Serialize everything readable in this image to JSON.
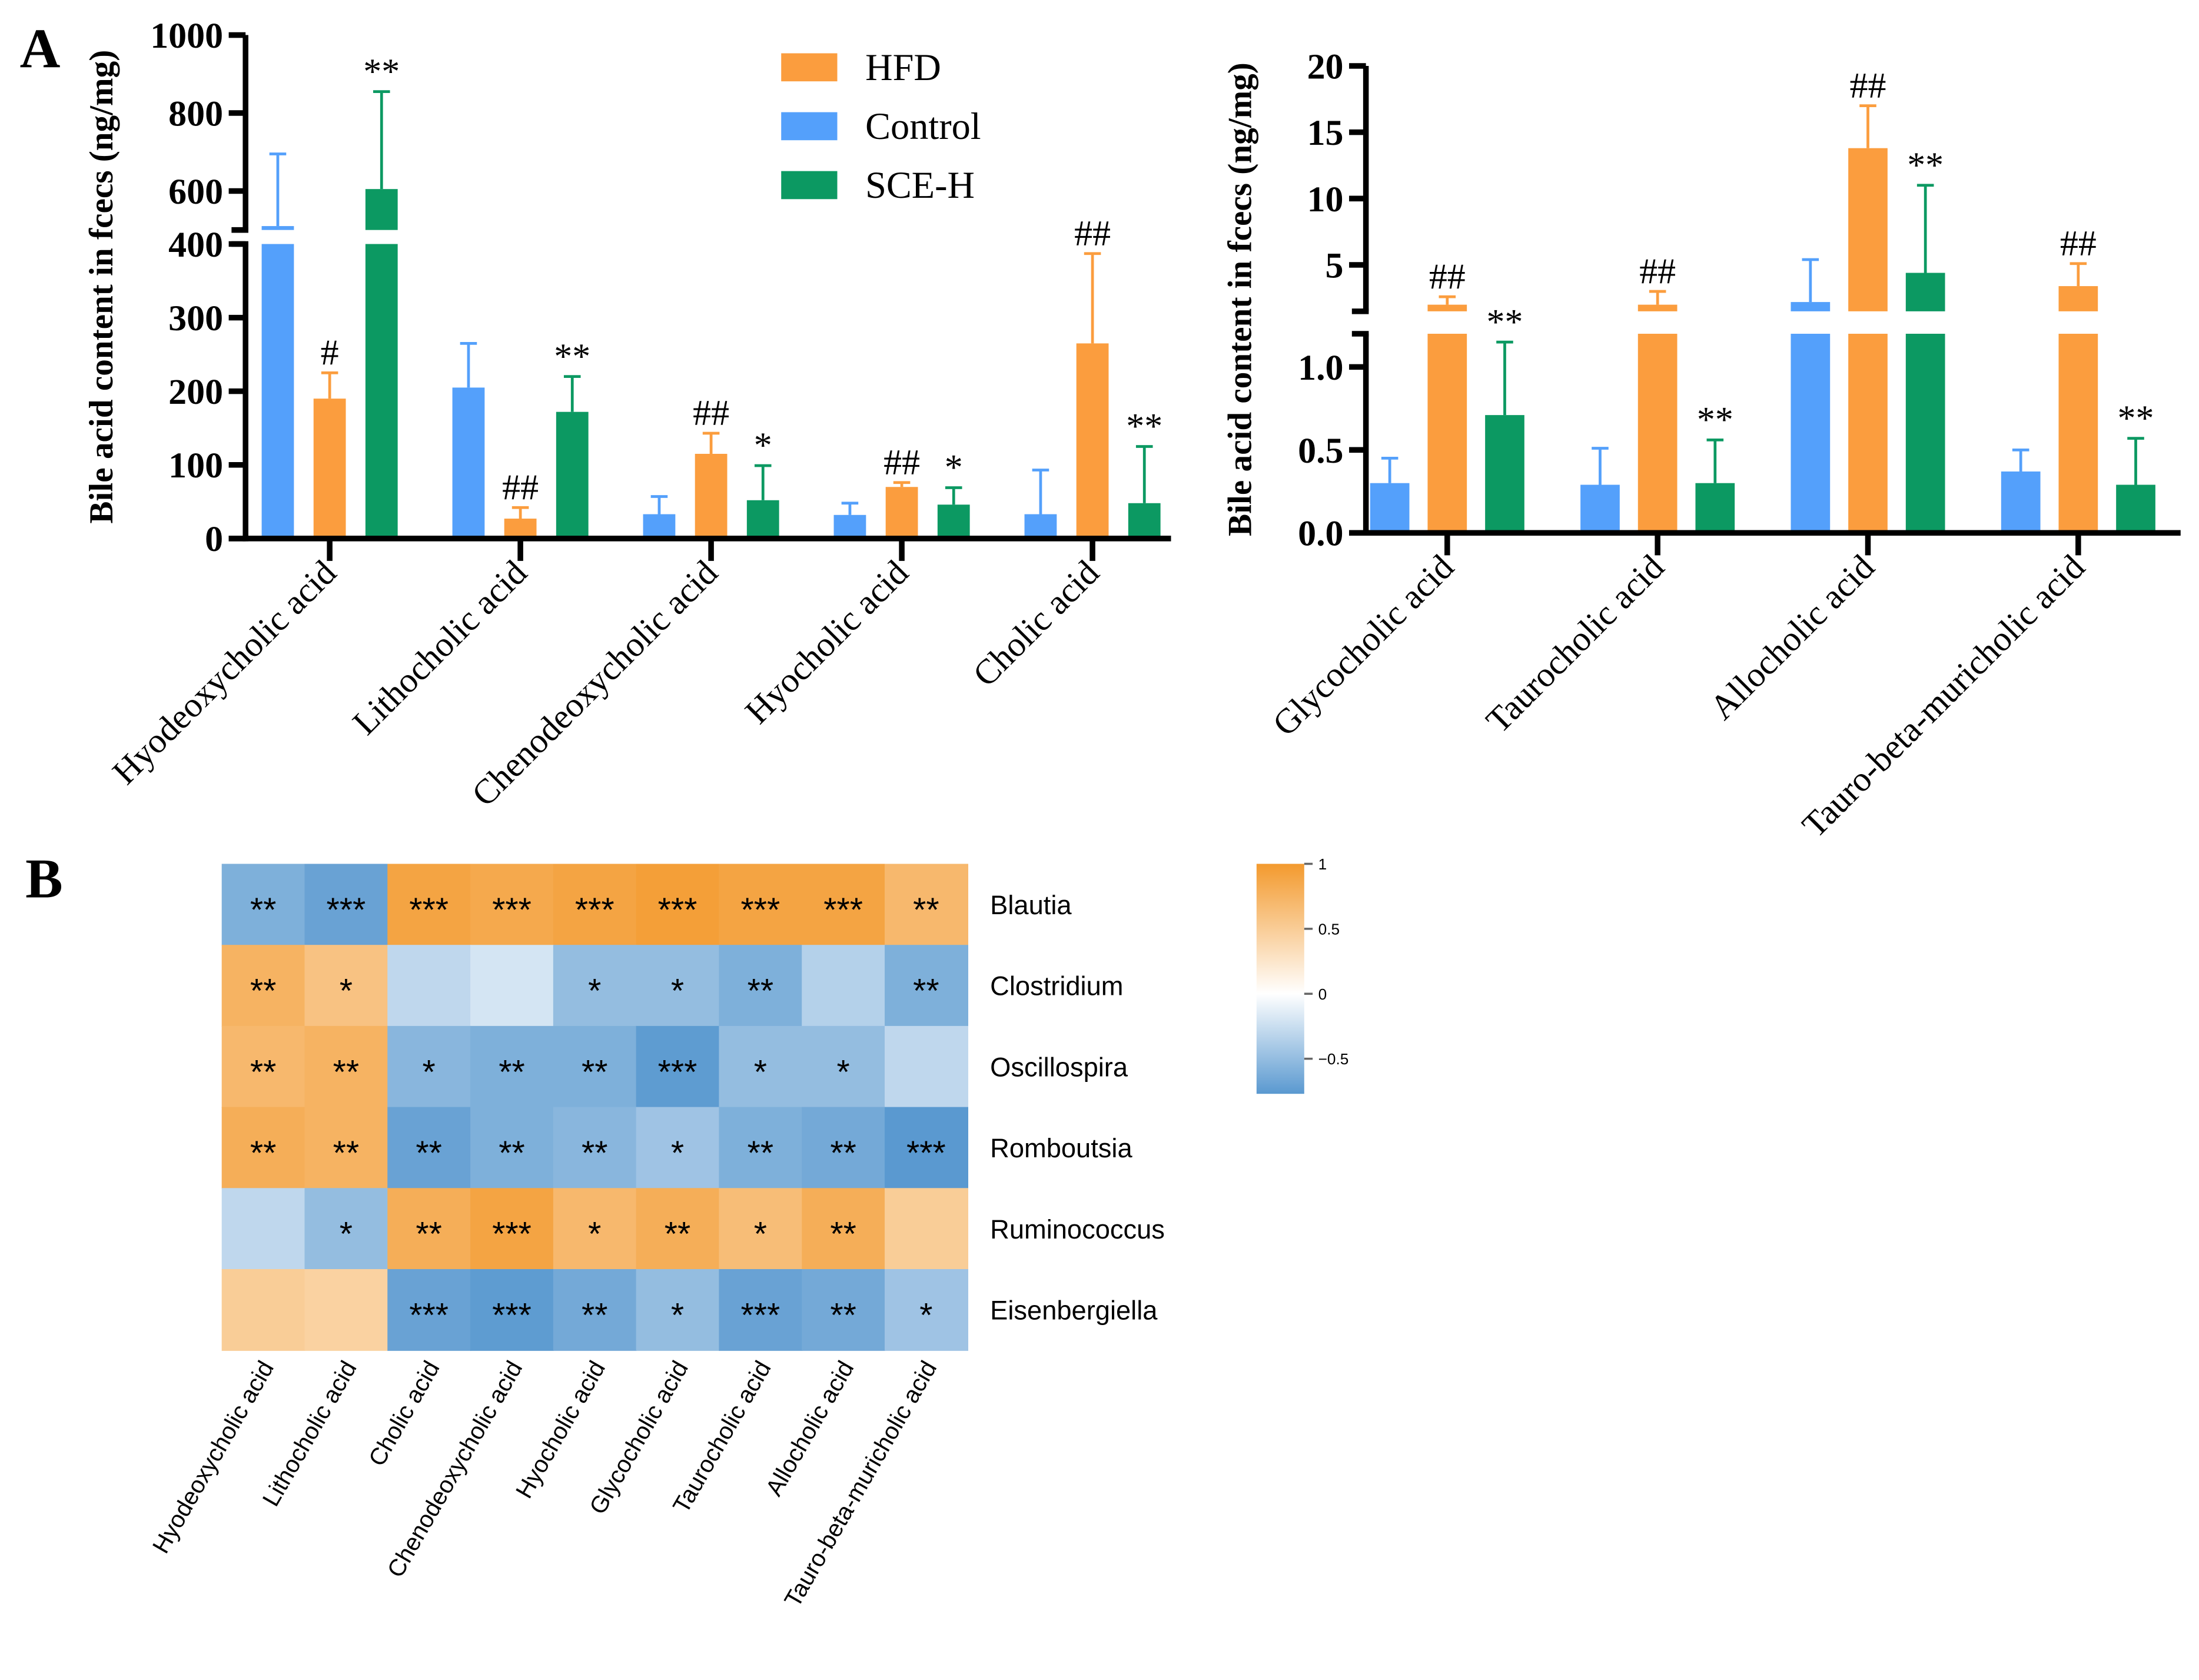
{
  "panel_labels": {
    "a": "A",
    "b": "B"
  },
  "colors": {
    "HFD": "#fb9d3e",
    "Control": "#54a0fb",
    "SCE-H": "#0c9962",
    "heat_high": "#f39a2e",
    "heat_mid": "#ffffff",
    "heat_low": "#5a99d0"
  },
  "chart_data": [
    {
      "type": "bar",
      "ylabel": "Bile acid content in fcecs  (ng/mg)",
      "yaxis_break": {
        "lower": [
          0,
          400
        ],
        "upper": [
          500,
          1000
        ]
      },
      "yticks": [
        "0",
        "100",
        "200",
        "300",
        "400",
        "600",
        "800",
        "1000"
      ],
      "legend": {
        "placement": "top-right",
        "entries": [
          "HFD",
          "Control",
          "SCE-H"
        ]
      },
      "categories": [
        "Hyodeoxycholic acid",
        "Lithocholic acid",
        "Chenodeoxycholic acid",
        "Hyocholic acid",
        "Cholic acid"
      ],
      "series": [
        {
          "name": "Control",
          "values": [
            510,
            205,
            33,
            32,
            33
          ],
          "error_top": [
            695,
            265,
            57,
            48,
            93
          ],
          "annotations": [
            "",
            "",
            "",
            "",
            ""
          ]
        },
        {
          "name": "HFD",
          "values": [
            190,
            27,
            115,
            70,
            265
          ],
          "error_top": [
            225,
            42,
            143,
            76,
            387
          ],
          "annotations": [
            "#",
            "##",
            "##",
            "##",
            "##"
          ]
        },
        {
          "name": "SCE-H",
          "values": [
            605,
            172,
            52,
            46,
            48
          ],
          "error_top": [
            855,
            220,
            99,
            69,
            125
          ],
          "annotations": [
            "**",
            "**",
            "*",
            "*",
            "**"
          ]
        }
      ]
    },
    {
      "type": "bar",
      "ylabel": "Bile acid content in fcecs  (ng/mg)",
      "yaxis_break": {
        "lower": [
          0,
          1.2
        ],
        "upper": [
          1.5,
          20
        ]
      },
      "yticks": [
        "0.0",
        "0.5",
        "1.0",
        "5",
        "10",
        "15",
        "20"
      ],
      "categories": [
        "Glycocholic acid",
        "Taurocholic acid",
        "Allocholic acid",
        "Tauro-beta-muricholic acid"
      ],
      "series": [
        {
          "name": "Control",
          "values": [
            0.3,
            0.29,
            2.2,
            0.37
          ],
          "error_top": [
            0.45,
            0.51,
            5.4,
            0.5
          ],
          "annotations": [
            "",
            "",
            "",
            ""
          ]
        },
        {
          "name": "HFD",
          "values": [
            2.0,
            2.0,
            13.8,
            3.4
          ],
          "error_top": [
            2.6,
            3.0,
            17.0,
            5.1
          ],
          "annotations": [
            "##",
            "##",
            "##",
            "##"
          ]
        },
        {
          "name": "SCE-H",
          "values": [
            0.71,
            0.3,
            4.4,
            0.29
          ],
          "error_top": [
            1.15,
            0.56,
            11.0,
            0.57
          ],
          "annotations": [
            "**",
            "**",
            "**",
            "**"
          ]
        }
      ]
    },
    {
      "type": "heatmap",
      "columns": [
        "Hyodeoxycholic acid",
        "Lithocholic acid",
        "Cholic acid",
        "Chenodeoxycholic acid",
        "Hyocholic acid",
        "Glycocholic acid",
        "Taurocholic acid",
        "Allocholic acid",
        "Tauro-beta-muricholic acid"
      ],
      "rows": [
        "Blautia",
        "Clostridium",
        "Oscillospira",
        "Romboutsia",
        "Ruminococcus",
        "Eisenbergiella"
      ],
      "values": [
        [
          -0.6,
          -0.7,
          0.9,
          0.85,
          0.9,
          0.95,
          0.9,
          0.9,
          0.7
        ],
        [
          0.75,
          0.6,
          -0.3,
          -0.2,
          -0.5,
          -0.5,
          -0.6,
          -0.35,
          -0.6
        ],
        [
          0.7,
          0.75,
          -0.55,
          -0.6,
          -0.6,
          -0.75,
          -0.5,
          -0.5,
          -0.3
        ],
        [
          0.8,
          0.75,
          -0.7,
          -0.6,
          -0.55,
          -0.45,
          -0.6,
          -0.65,
          -0.8
        ],
        [
          -0.3,
          -0.5,
          0.8,
          0.9,
          0.7,
          0.8,
          0.65,
          0.8,
          0.5
        ],
        [
          0.5,
          0.45,
          -0.7,
          -0.75,
          -0.65,
          -0.5,
          -0.7,
          -0.65,
          -0.45
        ]
      ],
      "significance": [
        [
          "**",
          "***",
          "***",
          "***",
          "***",
          "***",
          "***",
          "***",
          "**"
        ],
        [
          "**",
          "*",
          "",
          "",
          "*",
          "*",
          "**",
          "",
          "**"
        ],
        [
          "**",
          "**",
          "*",
          "**",
          "**",
          "***",
          "*",
          "*",
          ""
        ],
        [
          "**",
          "**",
          "**",
          "**",
          "**",
          "*",
          "**",
          "**",
          "***"
        ],
        [
          "",
          "*",
          "**",
          "***",
          "*",
          "**",
          "*",
          "**",
          ""
        ],
        [
          "",
          "",
          "***",
          "***",
          "**",
          "*",
          "***",
          "**",
          "*"
        ]
      ],
      "colorbar": {
        "range": [
          -0.77,
          1
        ],
        "ticks": [
          "1",
          "0.5",
          "0",
          "−0.5"
        ],
        "tick_values": [
          1,
          0.5,
          0,
          -0.5
        ],
        "placement": "right"
      }
    }
  ]
}
